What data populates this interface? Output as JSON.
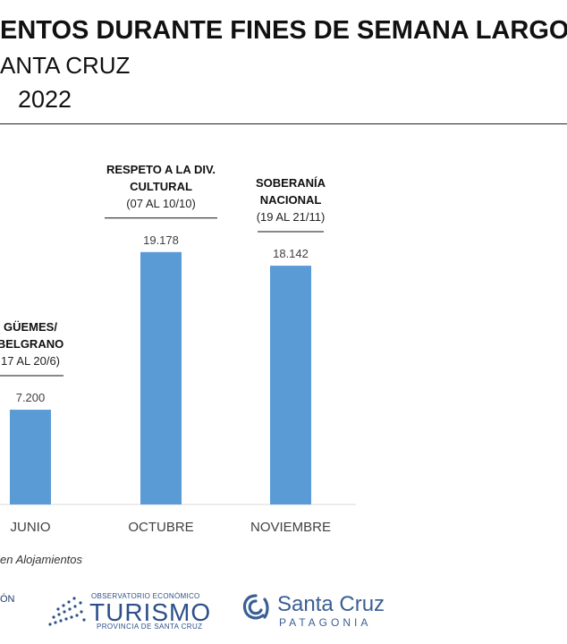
{
  "header": {
    "title": "ENTOS DURANTE FINES DE SEMANA LARGOS",
    "subtitle": "ANTA CRUZ",
    "year": "2022"
  },
  "chart_data": {
    "type": "bar",
    "categories": [
      "JUNIO",
      "OCTUBRE",
      "NOVIEMBRE"
    ],
    "values": [
      7200,
      19178,
      18142
    ],
    "value_labels": [
      "7.200",
      "19.178",
      "18.142"
    ],
    "annotations": [
      {
        "lines": [
          "GÜEMES/",
          "BELGRANO"
        ],
        "dates": "17 AL 20/6)"
      },
      {
        "lines": [
          "RESPETO A LA DIV.",
          "CULTURAL"
        ],
        "dates": "(07 AL 10/10)"
      },
      {
        "lines": [
          "SOBERANÍA",
          "NACIONAL"
        ],
        "dates": "(19 AL 21/11)"
      }
    ],
    "bar_color": "#5b9bd5",
    "ylim": [
      0,
      21000
    ],
    "grid": false
  },
  "footer": {
    "source": "en Alojamientos",
    "fragment": "ÓN",
    "logo_observatorio": {
      "line1": "OBSERVATORIO ECONÓMICO",
      "line2": "TURISMO",
      "line3": "PROVINCIA DE SANTA CRUZ"
    },
    "logo_santacruz": {
      "name": "Santa Cruz",
      "tagline": "PATAGONIA"
    }
  }
}
